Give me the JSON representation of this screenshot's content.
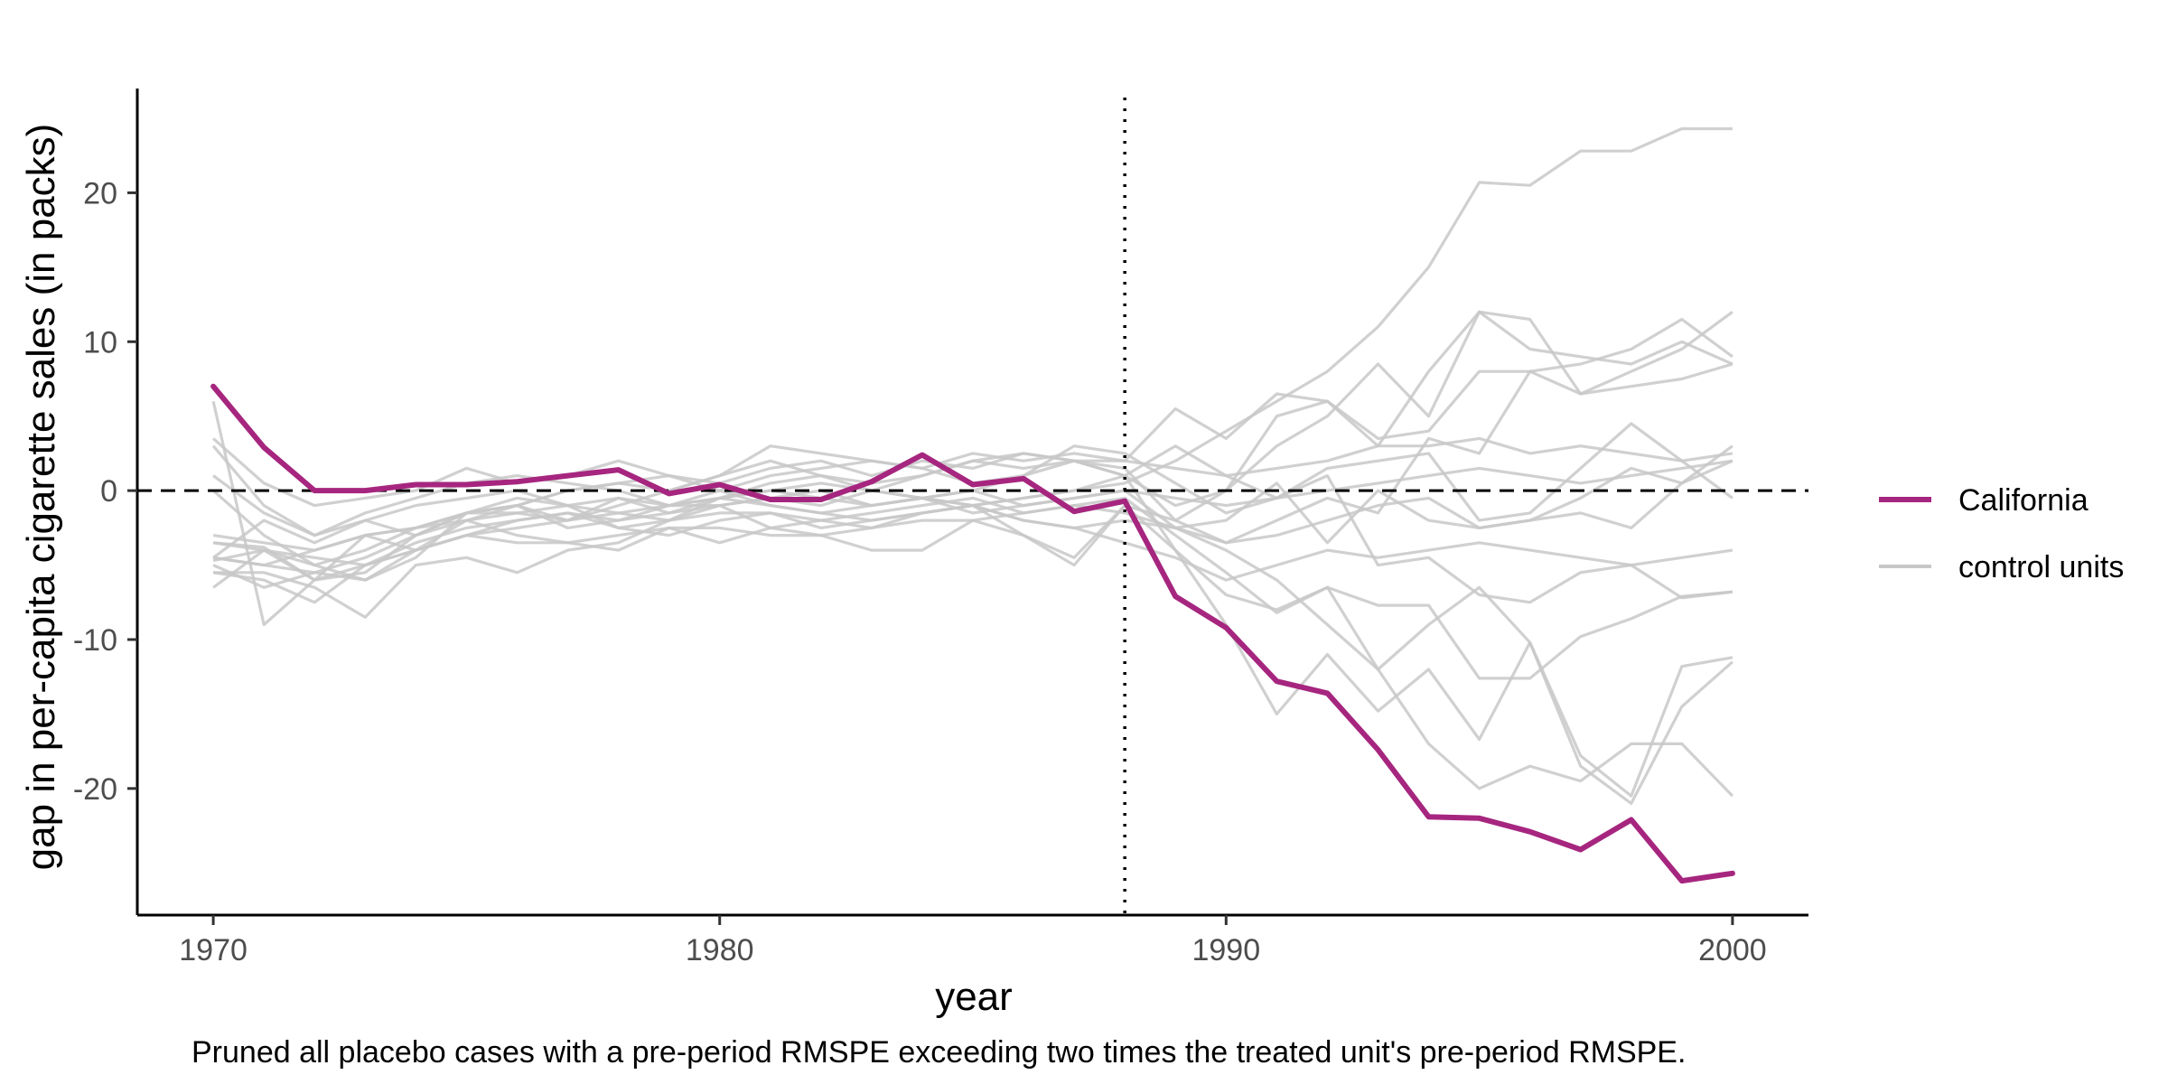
{
  "chart_data": {
    "type": "line",
    "xlabel": "year",
    "ylabel": "gap in per-capita cigarette sales (in packs)",
    "caption": "Pruned all placebo cases with a pre-period RMSPE exceeding two times the treated unit's pre-period RMSPE.",
    "xlim": [
      1968.5,
      2001.5
    ],
    "ylim": [
      -28.5,
      27
    ],
    "x_ticks": [
      1970,
      1980,
      1990,
      2000
    ],
    "y_ticks": [
      -20,
      -10,
      0,
      10,
      20
    ],
    "treatment_year": 1988,
    "reference_line_y": 0,
    "legend": {
      "position": "right",
      "entries": [
        "California",
        "control units"
      ]
    },
    "colors": {
      "treated": "#a6267f",
      "control": "#c8c8c8",
      "axis": "#000000"
    },
    "x": [
      1970,
      1971,
      1972,
      1973,
      1974,
      1975,
      1976,
      1977,
      1978,
      1979,
      1980,
      1981,
      1982,
      1983,
      1984,
      1985,
      1986,
      1987,
      1988,
      1989,
      1990,
      1991,
      1992,
      1993,
      1994,
      1995,
      1996,
      1997,
      1998,
      1999,
      2000
    ],
    "series": [
      {
        "name": "California",
        "role": "treated",
        "values": [
          7.0,
          2.9,
          0.0,
          0.0,
          0.4,
          0.4,
          0.6,
          1.0,
          1.4,
          -0.2,
          0.4,
          -0.6,
          -0.6,
          0.6,
          2.4,
          0.4,
          0.8,
          -1.4,
          -0.7,
          -7.1,
          -9.2,
          -12.8,
          -13.6,
          -17.4,
          -21.9,
          -22.0,
          -22.9,
          -24.1,
          -22.1,
          -26.2,
          -25.7
        ]
      },
      {
        "role": "control",
        "values": [
          -3.5,
          -3.8,
          -6.0,
          -5.5,
          -3.0,
          -1.5,
          -1.0,
          -2.0,
          -0.5,
          -1.5,
          -0.5,
          -1.0,
          -1.5,
          -2.0,
          -1.5,
          -1.0,
          -0.5,
          0.0,
          0.5,
          2.0,
          4.0,
          6.0,
          8.0,
          11.0,
          15.0,
          20.7,
          20.5,
          22.8,
          22.8,
          24.3,
          24.3
        ]
      },
      {
        "role": "control",
        "values": [
          -4.5,
          -2.0,
          -3.5,
          -2.0,
          -1.0,
          -0.5,
          0.0,
          -1.0,
          -2.5,
          -2.0,
          -0.5,
          0.5,
          1.0,
          0.0,
          1.0,
          2.0,
          2.5,
          2.0,
          1.5,
          -2.0,
          0.0,
          3.0,
          5.0,
          8.5,
          5.0,
          12.0,
          11.5,
          6.5,
          8.0,
          9.5,
          12.0
        ]
      },
      {
        "role": "control",
        "values": [
          3.5,
          0.5,
          -1.0,
          -0.5,
          0.0,
          1.5,
          0.5,
          1.0,
          2.0,
          1.0,
          0.5,
          1.5,
          2.0,
          1.0,
          2.0,
          1.5,
          2.5,
          2.0,
          2.0,
          5.5,
          3.5,
          6.5,
          6.0,
          3.5,
          4.0,
          8.0,
          8.0,
          8.5,
          9.5,
          11.5,
          9.0
        ]
      },
      {
        "role": "control",
        "values": [
          -5.5,
          -6.0,
          -7.5,
          -5.0,
          -4.0,
          -3.0,
          -2.5,
          -2.0,
          -1.0,
          0.0,
          1.0,
          2.0,
          1.0,
          0.5,
          1.0,
          2.0,
          1.5,
          2.0,
          1.0,
          -1.0,
          0.0,
          5.0,
          6.0,
          3.0,
          8.0,
          12.0,
          9.5,
          9.0,
          8.5,
          10.0,
          8.5
        ]
      },
      {
        "role": "control",
        "values": [
          -4.7,
          -4.0,
          -6.0,
          -5.0,
          -4.0,
          -3.0,
          -3.5,
          -3.5,
          -3.0,
          -2.5,
          -2.5,
          -3.0,
          -3.0,
          -2.5,
          -2.0,
          -2.0,
          -1.5,
          -1.0,
          -0.5,
          -3.0,
          -5.5,
          -8.2,
          -6.5,
          -7.7,
          -7.7,
          -12.6,
          -12.6,
          -9.8,
          -8.6,
          -7.1,
          -6.8
        ]
      },
      {
        "role": "control",
        "values": [
          0.0,
          -3.0,
          -5.0,
          -4.0,
          -2.5,
          -2.0,
          -1.5,
          -2.0,
          -1.5,
          -1.0,
          -0.5,
          0.0,
          0.5,
          0.0,
          -0.5,
          -1.0,
          -0.5,
          0.0,
          1.0,
          3.0,
          1.0,
          -0.5,
          1.0,
          -5.0,
          -4.5,
          -7.0,
          -7.5,
          -5.5,
          -5.0,
          -7.2,
          -6.8
        ]
      },
      {
        "role": "control",
        "values": [
          -5.0,
          -6.5,
          -5.5,
          -6.0,
          -4.0,
          -3.0,
          -2.0,
          -1.5,
          -2.0,
          -1.0,
          -1.0,
          -0.5,
          -1.0,
          0.0,
          -0.5,
          -1.0,
          -3.0,
          -4.5,
          -1.0,
          -4.0,
          -9.0,
          -15.0,
          -11.0,
          -14.8,
          -12.0,
          -16.7,
          -10.2,
          -17.8,
          -20.5,
          -11.8,
          -11.2
        ]
      },
      {
        "role": "control",
        "values": [
          3.0,
          -1.0,
          -3.0,
          -2.0,
          -3.0,
          -1.5,
          -1.0,
          0.0,
          0.5,
          1.0,
          0.0,
          -1.0,
          -1.5,
          -1.0,
          -0.5,
          0.0,
          -1.0,
          -0.5,
          0.0,
          -2.5,
          -4.0,
          -6.0,
          -9.0,
          -12.0,
          -9.0,
          -6.5,
          -10.2,
          -18.5,
          -21.0,
          -14.5,
          -11.5
        ]
      },
      {
        "role": "control",
        "values": [
          1.0,
          -1.5,
          -3.0,
          -1.5,
          -0.5,
          0.5,
          1.0,
          0.5,
          0.0,
          -1.0,
          0.0,
          1.0,
          1.5,
          2.0,
          1.5,
          0.5,
          1.0,
          2.0,
          1.0,
          -4.0,
          -7.0,
          -8.0,
          -6.5,
          -12.0,
          -17.0,
          -20.0,
          -18.5,
          -19.5,
          -17.0,
          -17.0,
          -20.5
        ]
      },
      {
        "role": "control",
        "values": [
          -6.5,
          -4.0,
          -5.0,
          -6.0,
          -4.5,
          -1.5,
          -0.5,
          -1.0,
          -1.5,
          -2.0,
          -1.0,
          -0.5,
          0.0,
          -1.0,
          -0.5,
          0.0,
          1.0,
          3.0,
          2.5,
          0.5,
          -1.5,
          -0.5,
          1.5,
          2.0,
          2.5,
          -2.0,
          -1.5,
          1.5,
          4.5,
          2.0,
          -0.5
        ]
      },
      {
        "role": "control",
        "values": [
          -5.5,
          -5.5,
          -6.5,
          -8.5,
          -5.0,
          -4.5,
          -5.5,
          -4.0,
          -3.5,
          -2.0,
          -1.5,
          -1.5,
          -2.5,
          -2.0,
          -1.5,
          -1.0,
          -2.0,
          -2.5,
          -2.0,
          -2.5,
          -2.0,
          0.5,
          -3.5,
          0.0,
          -2.0,
          -2.5,
          -2.0,
          -1.5,
          -2.5,
          0.5,
          3.0
        ]
      },
      {
        "role": "control",
        "values": [
          6.0,
          -9.0,
          -6.0,
          -3.0,
          -4.0,
          -2.0,
          -3.0,
          -3.5,
          -4.0,
          -2.5,
          -3.5,
          -2.5,
          -3.0,
          -4.0,
          -4.0,
          -2.0,
          -3.0,
          -5.0,
          -1.0,
          -2.0,
          -3.5,
          -2.0,
          -0.5,
          -1.5,
          3.5,
          2.5,
          8.0,
          6.5,
          7.0,
          7.5,
          8.5
        ]
      },
      {
        "role": "control",
        "values": [
          -4.5,
          -5.0,
          -4.0,
          -3.0,
          -2.5,
          -1.5,
          -1.0,
          -2.5,
          -2.0,
          -1.5,
          -1.0,
          -2.5,
          -2.0,
          -1.5,
          -1.0,
          -0.5,
          -1.5,
          -1.0,
          -1.5,
          -2.5,
          -3.5,
          -3.0,
          -2.0,
          -1.0,
          -0.5,
          -2.5,
          -2.0,
          -0.5,
          1.5,
          0.5,
          2.0
        ]
      },
      {
        "role": "control",
        "values": [
          -4.5,
          -5.0,
          -5.5,
          -4.5,
          -3.0,
          -2.0,
          -1.0,
          0.0,
          0.5,
          0.0,
          1.0,
          3.0,
          2.5,
          2.0,
          1.5,
          2.5,
          2.0,
          2.5,
          2.0,
          1.5,
          1.0,
          1.5,
          2.0,
          3.0,
          3.0,
          3.5,
          2.5,
          3.0,
          2.5,
          2.0,
          2.5
        ]
      },
      {
        "role": "control",
        "values": [
          -3.5,
          -4.0,
          -4.5,
          -5.0,
          -3.5,
          -2.5,
          -2.0,
          -1.5,
          -2.5,
          -3.0,
          -2.0,
          -1.5,
          -2.0,
          -2.5,
          -1.5,
          -1.0,
          -2.0,
          -2.5,
          -3.5,
          -4.5,
          -6.0,
          -5.0,
          -4.0,
          -4.5,
          -4.0,
          -3.5,
          -4.0,
          -4.5,
          -5.0,
          -4.5,
          -4.0
        ]
      },
      {
        "role": "control",
        "values": [
          -3.0,
          -3.5,
          -4.0,
          -3.0,
          -2.5,
          -1.5,
          -1.5,
          -1.0,
          -0.5,
          -1.0,
          -0.5,
          0.0,
          -0.5,
          -1.0,
          -0.5,
          -1.5,
          -1.0,
          -0.5,
          0.0,
          -0.5,
          -1.0,
          -0.5,
          0.0,
          0.5,
          1.0,
          1.5,
          1.0,
          0.5,
          1.0,
          1.5,
          2.0
        ]
      }
    ]
  }
}
